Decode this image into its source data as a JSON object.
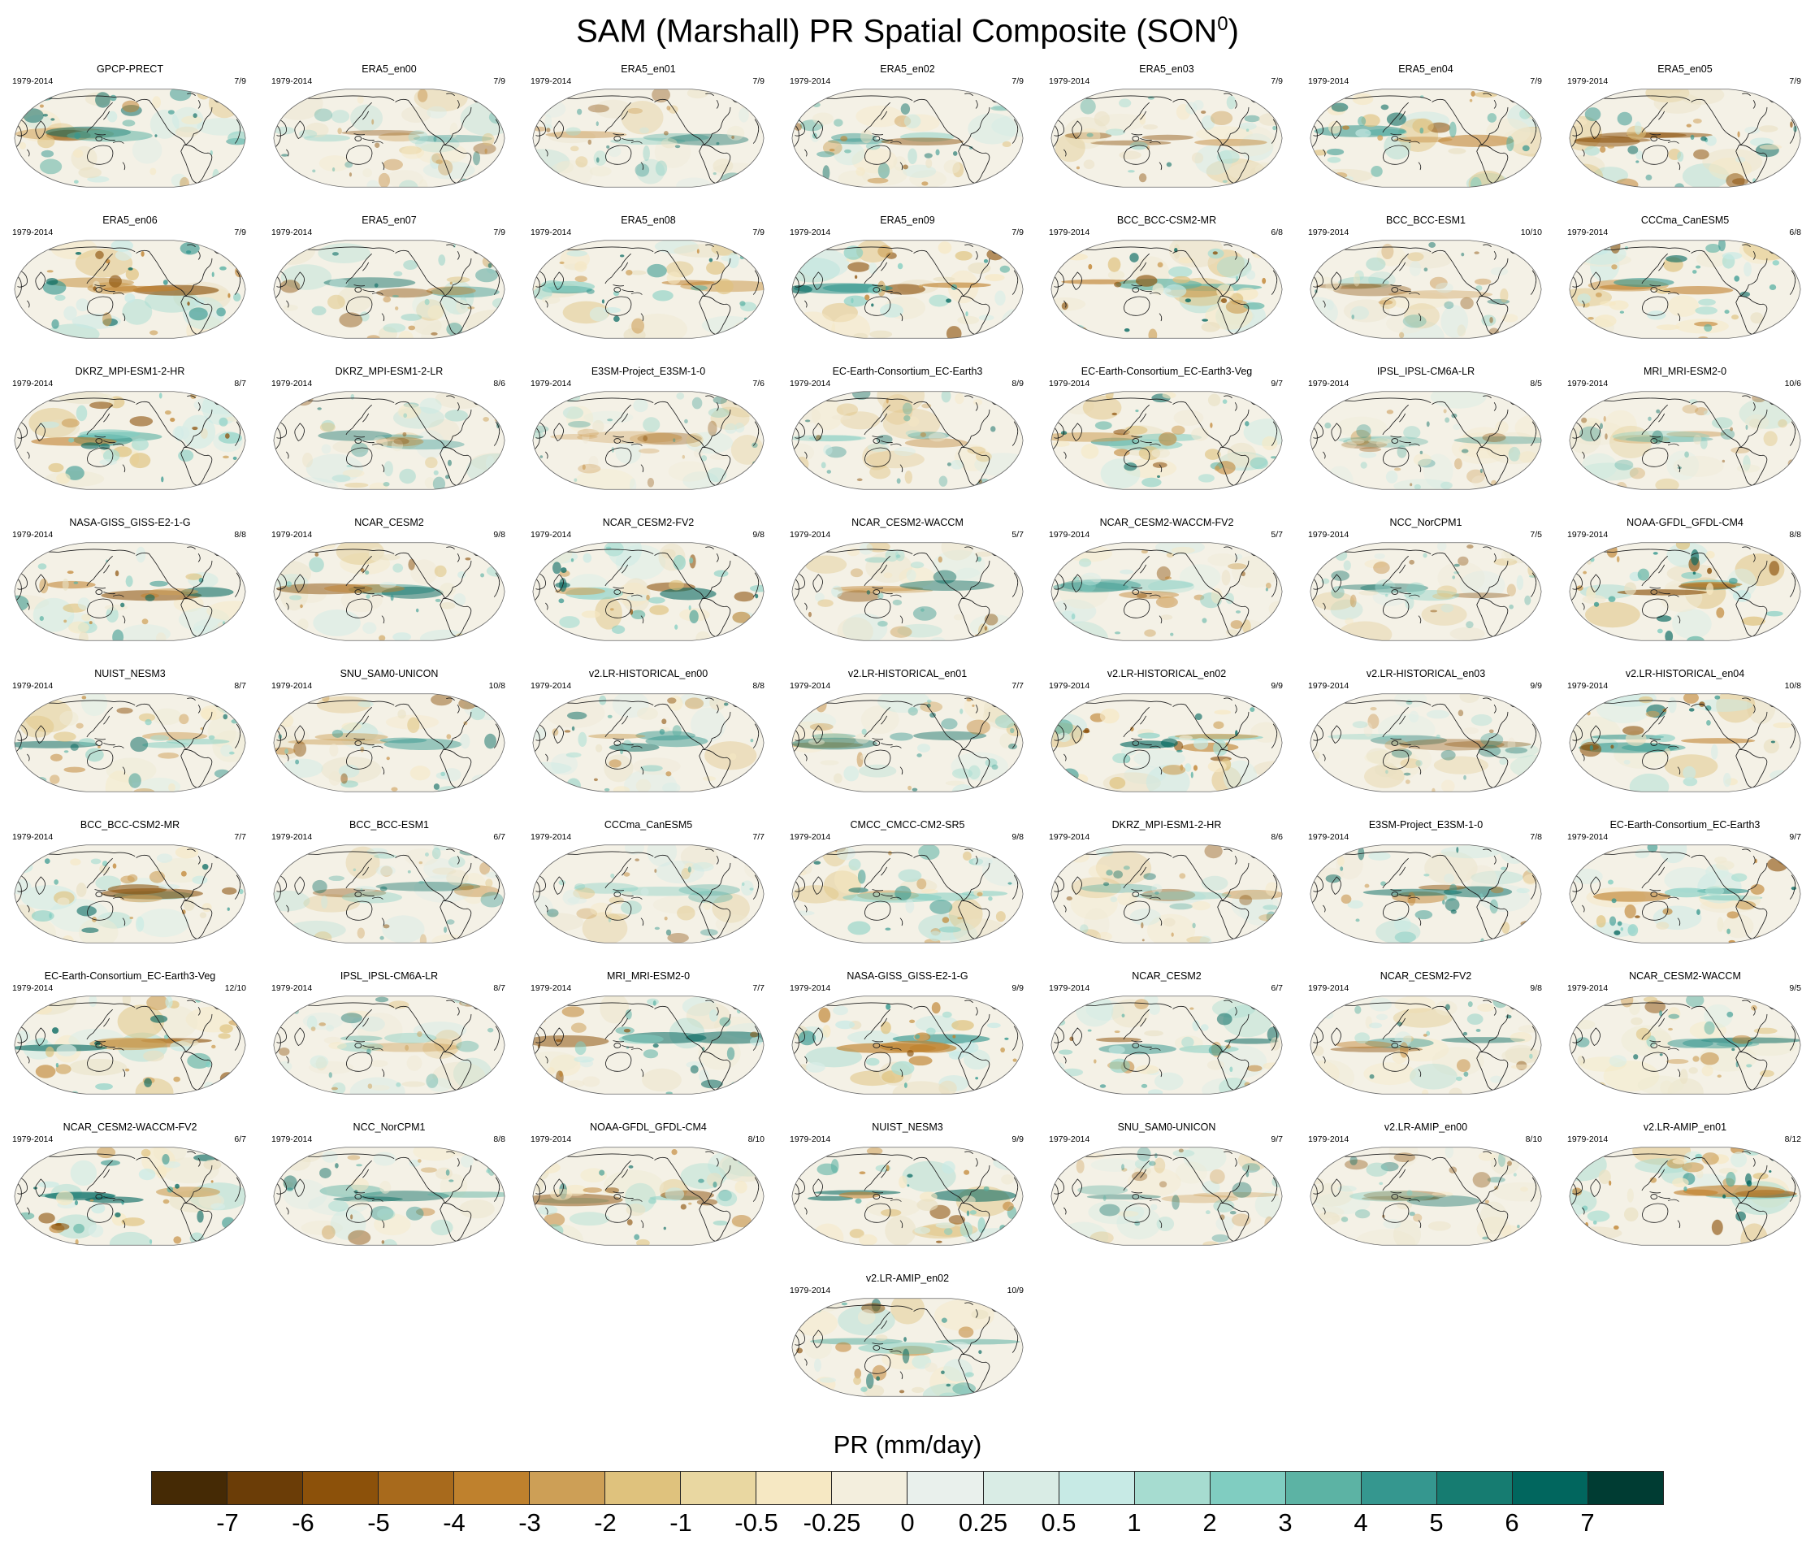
{
  "header": {
    "title_prefix": "SAM (Marshall) PR Spatial Composite (SON",
    "title_superscript": "0",
    "title_close": ")"
  },
  "map_colors": {
    "background": "#f4f1e6",
    "pale": [
      "#e9e0c2",
      "#dfc27d",
      "#c7eae5",
      "#d8ede7",
      "#f6e8c3",
      "#a8ddd2",
      "#efe9d2"
    ],
    "saturated": [
      "#bf812d",
      "#8c510a",
      "#80cdc1",
      "#35978f",
      "#58b0a2",
      "#cd9f56",
      "#01665e"
    ],
    "coastline": "#1b1b1b",
    "outline": "#666666"
  },
  "chart_data": {
    "type": "heatmap",
    "title": "SAM (Marshall) PR Spatial Composite (SON0)",
    "projection": "robinson-pacific-centered",
    "colorbar_label": "PR (mm/day)",
    "colorbar_ticks": [
      "-7",
      "-6",
      "-5",
      "-4",
      "-3",
      "-2",
      "-1",
      "-0.5",
      "-0.25",
      "0",
      "0.25",
      "0.5",
      "1",
      "2",
      "3",
      "4",
      "5",
      "6",
      "7"
    ],
    "colorbar_colors": [
      "#452a05",
      "#6b3d07",
      "#8c510a",
      "#a86a1c",
      "#bf812d",
      "#cd9f56",
      "#dfc27d",
      "#e9d7a1",
      "#f6e8c3",
      "#f3eedd",
      "#e9f0ec",
      "#d9ece5",
      "#c7eae5",
      "#a6dcd0",
      "#80cdc1",
      "#5cb3a4",
      "#35978f",
      "#167c71",
      "#01665e",
      "#003c33"
    ],
    "panels": [
      {
        "model": "GPCP-PRECT",
        "period": "1979-2014",
        "ratio": "7/9"
      },
      {
        "model": "ERA5_en00",
        "period": "1979-2014",
        "ratio": "7/9"
      },
      {
        "model": "ERA5_en01",
        "period": "1979-2014",
        "ratio": "7/9"
      },
      {
        "model": "ERA5_en02",
        "period": "1979-2014",
        "ratio": "7/9"
      },
      {
        "model": "ERA5_en03",
        "period": "1979-2014",
        "ratio": "7/9"
      },
      {
        "model": "ERA5_en04",
        "period": "1979-2014",
        "ratio": "7/9"
      },
      {
        "model": "ERA5_en05",
        "period": "1979-2014",
        "ratio": "7/9"
      },
      {
        "model": "ERA5_en06",
        "period": "1979-2014",
        "ratio": "7/9"
      },
      {
        "model": "ERA5_en07",
        "period": "1979-2014",
        "ratio": "7/9"
      },
      {
        "model": "ERA5_en08",
        "period": "1979-2014",
        "ratio": "7/9"
      },
      {
        "model": "ERA5_en09",
        "period": "1979-2014",
        "ratio": "7/9"
      },
      {
        "model": "BCC_BCC-CSM2-MR",
        "period": "1979-2014",
        "ratio": "6/8"
      },
      {
        "model": "BCC_BCC-ESM1",
        "period": "1979-2014",
        "ratio": "10/10"
      },
      {
        "model": "CCCma_CanESM5",
        "period": "1979-2014",
        "ratio": "6/8"
      },
      {
        "model": "DKRZ_MPI-ESM1-2-HR",
        "period": "1979-2014",
        "ratio": "8/7"
      },
      {
        "model": "DKRZ_MPI-ESM1-2-LR",
        "period": "1979-2014",
        "ratio": "8/6"
      },
      {
        "model": "E3SM-Project_E3SM-1-0",
        "period": "1979-2014",
        "ratio": "7/6"
      },
      {
        "model": "EC-Earth-Consortium_EC-Earth3",
        "period": "1979-2014",
        "ratio": "8/9"
      },
      {
        "model": "EC-Earth-Consortium_EC-Earth3-Veg",
        "period": "1979-2014",
        "ratio": "9/7"
      },
      {
        "model": "IPSL_IPSL-CM6A-LR",
        "period": "1979-2014",
        "ratio": "8/5"
      },
      {
        "model": "MRI_MRI-ESM2-0",
        "period": "1979-2014",
        "ratio": "10/6"
      },
      {
        "model": "NASA-GISS_GISS-E2-1-G",
        "period": "1979-2014",
        "ratio": "8/8"
      },
      {
        "model": "NCAR_CESM2",
        "period": "1979-2014",
        "ratio": "9/8"
      },
      {
        "model": "NCAR_CESM2-FV2",
        "period": "1979-2014",
        "ratio": "9/8"
      },
      {
        "model": "NCAR_CESM2-WACCM",
        "period": "1979-2014",
        "ratio": "5/7"
      },
      {
        "model": "NCAR_CESM2-WACCM-FV2",
        "period": "1979-2014",
        "ratio": "5/7"
      },
      {
        "model": "NCC_NorCPM1",
        "period": "1979-2014",
        "ratio": "7/5"
      },
      {
        "model": "NOAA-GFDL_GFDL-CM4",
        "period": "1979-2014",
        "ratio": "8/8"
      },
      {
        "model": "NUIST_NESM3",
        "period": "1979-2014",
        "ratio": "8/7"
      },
      {
        "model": "SNU_SAM0-UNICON",
        "period": "1979-2014",
        "ratio": "10/8"
      },
      {
        "model": "v2.LR-HISTORICAL_en00",
        "period": "1979-2014",
        "ratio": "8/8"
      },
      {
        "model": "v2.LR-HISTORICAL_en01",
        "period": "1979-2014",
        "ratio": "7/7"
      },
      {
        "model": "v2.LR-HISTORICAL_en02",
        "period": "1979-2014",
        "ratio": "9/9"
      },
      {
        "model": "v2.LR-HISTORICAL_en03",
        "period": "1979-2014",
        "ratio": "9/9"
      },
      {
        "model": "v2.LR-HISTORICAL_en04",
        "period": "1979-2014",
        "ratio": "10/8"
      },
      {
        "model": "BCC_BCC-CSM2-MR",
        "period": "1979-2014",
        "ratio": "7/7"
      },
      {
        "model": "BCC_BCC-ESM1",
        "period": "1979-2014",
        "ratio": "6/7"
      },
      {
        "model": "CCCma_CanESM5",
        "period": "1979-2014",
        "ratio": "7/7"
      },
      {
        "model": "CMCC_CMCC-CM2-SR5",
        "period": "1979-2014",
        "ratio": "9/8"
      },
      {
        "model": "DKRZ_MPI-ESM1-2-HR",
        "period": "1979-2014",
        "ratio": "8/6"
      },
      {
        "model": "E3SM-Project_E3SM-1-0",
        "period": "1979-2014",
        "ratio": "7/8"
      },
      {
        "model": "EC-Earth-Consortium_EC-Earth3",
        "period": "1979-2014",
        "ratio": "9/7"
      },
      {
        "model": "EC-Earth-Consortium_EC-Earth3-Veg",
        "period": "1979-2014",
        "ratio": "12/10"
      },
      {
        "model": "IPSL_IPSL-CM6A-LR",
        "period": "1979-2014",
        "ratio": "8/7"
      },
      {
        "model": "MRI_MRI-ESM2-0",
        "period": "1979-2014",
        "ratio": "7/7"
      },
      {
        "model": "NASA-GISS_GISS-E2-1-G",
        "period": "1979-2014",
        "ratio": "9/9"
      },
      {
        "model": "NCAR_CESM2",
        "period": "1979-2014",
        "ratio": "6/7"
      },
      {
        "model": "NCAR_CESM2-FV2",
        "period": "1979-2014",
        "ratio": "9/8"
      },
      {
        "model": "NCAR_CESM2-WACCM",
        "period": "1979-2014",
        "ratio": "9/5"
      },
      {
        "model": "NCAR_CESM2-WACCM-FV2",
        "period": "1979-2014",
        "ratio": "6/7"
      },
      {
        "model": "NCC_NorCPM1",
        "period": "1979-2014",
        "ratio": "8/8"
      },
      {
        "model": "NOAA-GFDL_GFDL-CM4",
        "period": "1979-2014",
        "ratio": "8/10"
      },
      {
        "model": "NUIST_NESM3",
        "period": "1979-2014",
        "ratio": "9/9"
      },
      {
        "model": "SNU_SAM0-UNICON",
        "period": "1979-2014",
        "ratio": "9/7"
      },
      {
        "model": "v2.LR-AMIP_en00",
        "period": "1979-2014",
        "ratio": "8/10"
      },
      {
        "model": "v2.LR-AMIP_en01",
        "period": "1979-2014",
        "ratio": "8/12"
      },
      {
        "model": "v2.LR-AMIP_en02",
        "period": "1979-2014",
        "ratio": "10/9",
        "grid_col": 4
      }
    ]
  }
}
